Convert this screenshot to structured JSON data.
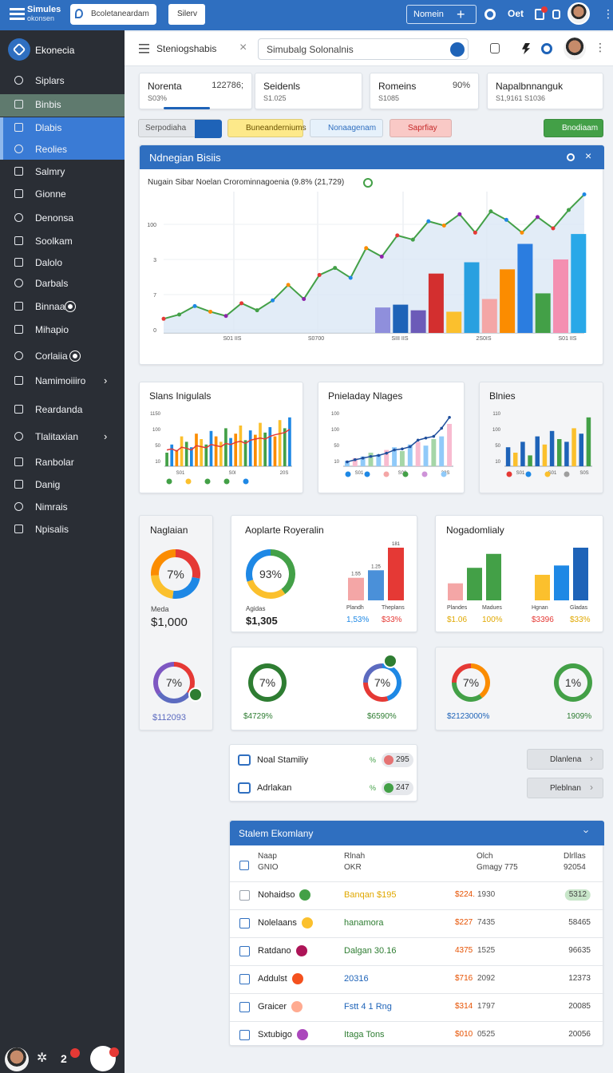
{
  "topbar": {
    "brand": [
      "Simules",
      "okonsen"
    ],
    "search": "Bcoletaneardam",
    "button": "Silerv",
    "action": "Nomein",
    "label": "Oet"
  },
  "sidebar": {
    "title": "Ekonecia",
    "items": [
      "Siplars",
      "Binbis",
      "Dlabis",
      "Reolies",
      "Salmry",
      "Gionne",
      "Denonsa",
      "Soolkam",
      "Dalolo",
      "Darbals",
      "Binnaa",
      "Mihapio",
      "Corlaiia",
      "Namimoiiiro",
      "Reardanda",
      "Tlalitaxian",
      "Ranbolar",
      "Danig",
      "Nimrais",
      "Npisalis"
    ],
    "badge": "2"
  },
  "header": {
    "title": "Steniogshabis",
    "search": "Simubalg Solonalnis"
  },
  "stats": [
    {
      "label": "Norenta",
      "value": "122786;",
      "sub": "S03%"
    },
    {
      "label": "Seidenls",
      "sub": "S1.025"
    },
    {
      "label": "Romeins",
      "value": "90%",
      "sub": "S1085"
    },
    {
      "label": "Napalbnnanguk",
      "sub": "S1,9161 S1036"
    }
  ],
  "buttons": [
    {
      "label": "Serpodiaha",
      "color": "#e3e6ea",
      "text": "#555555"
    },
    {
      "label": "Buneanderniums",
      "color": "#fde98a",
      "text": "#6b5200"
    },
    {
      "label": "Nonaagenam",
      "color": "#e6f1fb",
      "text": "#2f6fc0"
    },
    {
      "label": "Saprfiay",
      "color": "#f9c9c6",
      "text": "#c62828"
    },
    {
      "label": "Bnodiaam",
      "color": "#43a047",
      "text": "#ffffff"
    }
  ],
  "main_chart": {
    "title": "Ndnegian Bisiis",
    "subtitle": "Nugain Sibar Noelan Crorominnagoenia (9.8% (21,729)",
    "y_labels": [
      "100",
      "3",
      "7",
      "0"
    ],
    "x_labels": [
      "S01 IIS",
      "S0700",
      "SIII IIS",
      "2S0IS",
      "S01 IIS",
      "20IIS"
    ],
    "ylim": [
      0,
      100
    ],
    "line": [
      10,
      13,
      19,
      15,
      12,
      21,
      16,
      23,
      34,
      24,
      41,
      46,
      39,
      60,
      54,
      69,
      66,
      79,
      76,
      84,
      71,
      86,
      80,
      71,
      82,
      74,
      87,
      98
    ],
    "line_color": "#43a047",
    "point_colors": [
      "#e53935",
      "#43a047",
      "#1e88e5",
      "#fb8c00",
      "#8e24aa"
    ],
    "bars": [
      18,
      20,
      16,
      42,
      15,
      50,
      24,
      45,
      63,
      28,
      52,
      70
    ],
    "bar_colors": [
      "#8f8fdc",
      "#1e63b8",
      "#6c5bb8",
      "#d32f2f",
      "#fbc02d",
      "#29a0e0",
      "#f4a6a6",
      "#fb8c00",
      "#2b7de0",
      "#43a047",
      "#f48fb1",
      "#29a8e8"
    ]
  },
  "mini_charts": [
    {
      "title": "Slans Inigulals",
      "y_labels": [
        "1150",
        "100",
        "50",
        "10"
      ],
      "x_labels": [
        "S01",
        "S0I",
        "20S"
      ],
      "bars": [
        25,
        40,
        30,
        55,
        45,
        35,
        60,
        50,
        40,
        65,
        55,
        45,
        70,
        52,
        60,
        75,
        48,
        66,
        58,
        80,
        62,
        72,
        55,
        85,
        70,
        90
      ],
      "bar_colors": [
        "#43a047",
        "#1e88e5",
        "#fb8c00",
        "#fbc02d"
      ],
      "line": [
        30,
        32,
        28,
        35,
        33,
        30,
        38,
        36,
        34,
        40,
        38,
        36,
        42,
        40,
        44,
        46,
        42,
        48,
        50,
        52,
        50,
        55,
        58,
        60,
        62,
        68
      ],
      "line_color": "#e53935",
      "dots": [
        "#43a047",
        "#fbc02d",
        "#43a047",
        "#43a047",
        "#1e88e5"
      ]
    },
    {
      "title": "Pnieladay Nlages",
      "y_labels": [
        "100",
        "100",
        "50",
        "10"
      ],
      "x_labels": [
        "S01",
        "S00",
        "20S"
      ],
      "bars": [
        10,
        15,
        18,
        25,
        22,
        30,
        35,
        28,
        40,
        45,
        38,
        50,
        55,
        78
      ],
      "bar_colors": [
        "#90caf9",
        "#f8bbd0",
        "#90caf9",
        "#a5d6a7"
      ],
      "line": [
        8,
        12,
        15,
        18,
        20,
        24,
        30,
        32,
        36,
        48,
        52,
        55,
        70,
        90
      ],
      "line_color": "#1f4e9c",
      "dots": [
        "#1e88e5",
        "#1e88e5",
        "#f4a6a6",
        "#43a047",
        "#ce93d8",
        "#90caf9"
      ]
    },
    {
      "title": "Blnies",
      "y_labels": [
        "110",
        "100",
        "50",
        "10"
      ],
      "x_labels": [
        "S01",
        "S01",
        "S0S"
      ],
      "bars": [
        35,
        25,
        45,
        20,
        55,
        40,
        65,
        50,
        45,
        70,
        60,
        90
      ],
      "bar_colors": [
        "#1e63b8",
        "#fbc02d",
        "#1e63b8",
        "#43a047"
      ],
      "dots": [
        "#e53935",
        "#1e88e5",
        "#fbc02d",
        "#9e9e9e"
      ]
    }
  ],
  "kpi_a": {
    "title": "Naglaian",
    "donut": {
      "center": "7%",
      "segments": [
        28,
        24,
        22,
        26
      ],
      "colors": [
        "#e53935",
        "#1e88e5",
        "#fbc02d",
        "#fb8c00"
      ]
    },
    "label": "Meda",
    "value": "$1,000",
    "donut2": {
      "center": "7%",
      "segments": [
        35,
        30,
        35
      ],
      "colors": [
        "#e53935",
        "#5c6bc0",
        "#7e57c2"
      ]
    },
    "value2": "$112093"
  },
  "kpi_b": {
    "title": "Aoplarte Royeralin",
    "donut": {
      "center": "93%",
      "segments": [
        40,
        30,
        30
      ],
      "colors": [
        "#43a047",
        "#fbc02d",
        "#1e88e5"
      ]
    },
    "label": "Agidas",
    "value": "$1,305",
    "bars": [
      30,
      40,
      70
    ],
    "bar_colors": [
      "#f4a6a6",
      "#4a90d9",
      "#e53935"
    ],
    "bar_labels": [
      "1.55",
      "1.25",
      "181"
    ],
    "captions": [
      "Plandh",
      "Theplans"
    ],
    "caption_values": [
      "1,53%",
      "$33%"
    ]
  },
  "kpi_c": {
    "title": "Nogadomlialy",
    "bars": [
      22,
      42,
      60,
      33,
      45,
      68
    ],
    "bar_colors": [
      "#f4a6a6",
      "#43a047",
      "#43a047",
      "#fbc02d",
      "#1e88e5",
      "#1e63b8"
    ],
    "captions": [
      "Plandes",
      "Madues",
      "Hgnan",
      "Gladas"
    ],
    "caption_values": [
      "$1.06",
      "100%",
      "$3396",
      "$33%"
    ]
  },
  "kpi_row": [
    {
      "center": "7%",
      "segments": [
        100
      ],
      "colors": [
        "#2e7d32"
      ],
      "value": "$4729%"
    },
    {
      "center": "7%",
      "segments": [
        45,
        30,
        25
      ],
      "colors": [
        "#1e88e5",
        "#e53935",
        "#5c6bc0"
      ],
      "value": "$6590%"
    },
    {
      "center": "7%",
      "segments": [
        40,
        35,
        25
      ],
      "colors": [
        "#fb8c00",
        "#43a047",
        "#e53935"
      ],
      "value": "$2123000%"
    },
    {
      "center": "1%",
      "segments": [
        100
      ],
      "colors": [
        "#43a047"
      ],
      "value": "1909%"
    }
  ],
  "list": [
    {
      "label": "Noal Stamiliy",
      "unit": "%",
      "value": "295"
    },
    {
      "label": "Adrlakan",
      "unit": "%",
      "value": "247"
    }
  ],
  "side_buttons": [
    "Dlanlena",
    "Pleblnan"
  ],
  "table": {
    "title": "Stalem Ekomlany",
    "headers": [
      [
        "Naap",
        "GNIO"
      ],
      [
        "Rlnah",
        "OKR"
      ],
      [
        "Olch",
        "Gmagy 775"
      ],
      [
        "Dlrllas",
        "92054"
      ]
    ],
    "rows": [
      {
        "name": "Nohaidso",
        "icon": "#43a047",
        "tag": "Banqan $195",
        "tag_color": "#e0a800",
        "amount": "$224.",
        "num": "1930",
        "total": "5312"
      },
      {
        "name": "Nolelaans",
        "icon": "#fbc02d",
        "tag": "hanamora",
        "tag_color": "#2e7d32",
        "amount": "$227",
        "num": "7435",
        "total": "58465"
      },
      {
        "name": "Ratdano",
        "icon": "#ad1457",
        "tag": "Dalgan 30.16",
        "tag_color": "#2e7d32",
        "amount": "4375",
        "num": "1525",
        "total": "96635"
      },
      {
        "name": "Addulst",
        "icon": "#f4511e",
        "tag": "20316",
        "tag_color": "#1e63b8",
        "amount": "$716",
        "num": "2092",
        "total": "12373"
      },
      {
        "name": "Graicer",
        "icon": "#ffab91",
        "tag": "Fstt 4 1 Rng",
        "tag_color": "#1e63b8",
        "amount": "$314",
        "num": "1797",
        "total": "20085"
      },
      {
        "name": "Sxtubigo",
        "icon": "#ab47bc",
        "tag": "Itaga Tons",
        "tag_color": "#2e7d32",
        "amount": "$010",
        "num": "0525",
        "total": "20056"
      }
    ]
  }
}
